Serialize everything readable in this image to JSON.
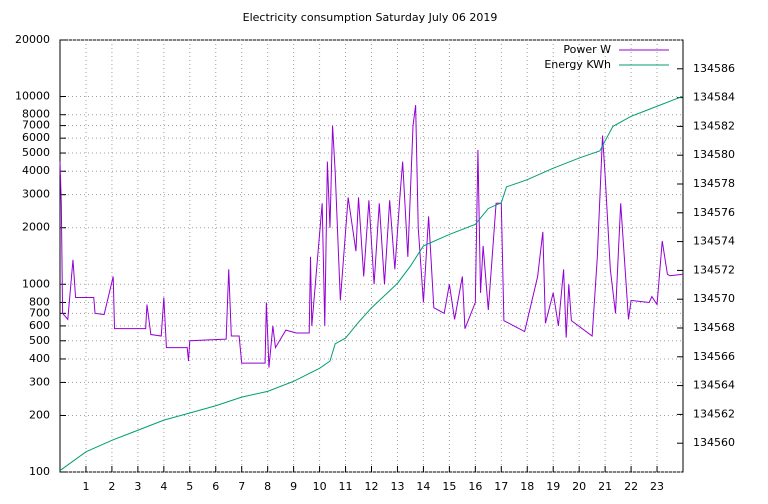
{
  "chart_data": {
    "type": "line",
    "title": "Electricity consumption Saturday July 06 2019",
    "xlim": [
      0,
      24
    ],
    "xticks": [
      1,
      2,
      3,
      4,
      5,
      6,
      7,
      8,
      9,
      10,
      11,
      12,
      13,
      14,
      15,
      16,
      17,
      18,
      19,
      20,
      21,
      22,
      23
    ],
    "ylim": [
      100,
      20000
    ],
    "yticks": [
      100,
      200,
      300,
      400,
      500,
      600,
      700,
      800,
      1000,
      2000,
      3000,
      4000,
      5000,
      6000,
      7000,
      8000,
      10000,
      20000
    ],
    "y_log": true,
    "y2lim": [
      134558,
      134588
    ],
    "y2ticks": [
      134560,
      134562,
      134564,
      134566,
      134568,
      134570,
      134572,
      134574,
      134576,
      134578,
      134580,
      134582,
      134584,
      134586
    ],
    "grid": true,
    "legend": "top-right",
    "series": [
      {
        "name": "Power W",
        "color": "#9400d3",
        "x": [
          0,
          0.05,
          0.1,
          0.3,
          0.5,
          0.6,
          1.3,
          1.35,
          1.7,
          2.05,
          2.1,
          3.3,
          3.35,
          3.5,
          3.9,
          4.0,
          4.1,
          4.9,
          4.95,
          5.0,
          6.4,
          6.5,
          6.6,
          6.9,
          7.0,
          7.9,
          7.95,
          8.05,
          8.2,
          8.3,
          8.7,
          9.1,
          9.6,
          9.65,
          9.7,
          10.1,
          10.2,
          10.3,
          10.4,
          10.5,
          10.6,
          10.8,
          11.1,
          11.4,
          11.5,
          11.7,
          11.9,
          12.1,
          12.3,
          12.5,
          12.7,
          12.9,
          13.1,
          13.2,
          13.4,
          13.6,
          13.7,
          13.8,
          14.0,
          14.2,
          14.4,
          14.8,
          15.0,
          15.2,
          15.5,
          15.6,
          16.0,
          16.1,
          16.2,
          16.3,
          16.5,
          16.8,
          17.0,
          17.1,
          17.9,
          18.4,
          18.6,
          18.7,
          19.0,
          19.2,
          19.4,
          19.5,
          19.6,
          19.7,
          20.5,
          20.7,
          20.9,
          21.0,
          21.2,
          21.4,
          21.6,
          21.9,
          22.0,
          22.7,
          22.8,
          23.0,
          23.2,
          23.4,
          23.5,
          24.0
        ],
        "values": [
          4500,
          2700,
          700,
          650,
          1350,
          850,
          850,
          700,
          690,
          1100,
          580,
          580,
          780,
          540,
          530,
          850,
          460,
          460,
          390,
          500,
          510,
          1200,
          530,
          530,
          380,
          380,
          800,
          360,
          600,
          460,
          570,
          550,
          550,
          1400,
          600,
          2700,
          600,
          4500,
          2000,
          7000,
          4000,
          820,
          2900,
          1500,
          2900,
          1100,
          2800,
          1000,
          2700,
          1000,
          2800,
          1200,
          3000,
          4500,
          1400,
          7000,
          9000,
          2000,
          800,
          2300,
          750,
          700,
          1000,
          650,
          1100,
          580,
          800,
          5200,
          900,
          1600,
          730,
          2700,
          2700,
          640,
          560,
          1100,
          1900,
          620,
          900,
          600,
          1200,
          520,
          1000,
          640,
          530,
          1400,
          6200,
          3800,
          1200,
          700,
          2700,
          650,
          820,
          800,
          860,
          780,
          1700,
          1130,
          1110,
          1130
        ]
      },
      {
        "name": "Energy KWh",
        "color": "#009e73",
        "axis": "y2",
        "x": [
          0,
          1,
          2,
          3,
          4,
          5,
          6,
          7,
          8,
          9,
          10,
          10.4,
          10.6,
          11,
          11.5,
          12,
          13,
          13.5,
          14,
          15,
          16,
          16.5,
          17,
          17.2,
          18,
          19,
          20,
          20.8,
          21,
          21.3,
          22,
          23,
          24
        ],
        "values": [
          134558.1,
          134559.4,
          134560.2,
          134560.9,
          134561.6,
          134562.1,
          134562.6,
          134563.2,
          134563.6,
          134564.3,
          134565.2,
          134565.7,
          134566.9,
          134567.3,
          134568.4,
          134569.4,
          134571.1,
          134572.3,
          134573.7,
          134574.5,
          134575.2,
          134576.3,
          134576.7,
          134577.8,
          134578.3,
          134579.1,
          134579.8,
          134580.3,
          134581.0,
          134582.0,
          134582.7,
          134583.4,
          134584.1
        ]
      }
    ]
  }
}
